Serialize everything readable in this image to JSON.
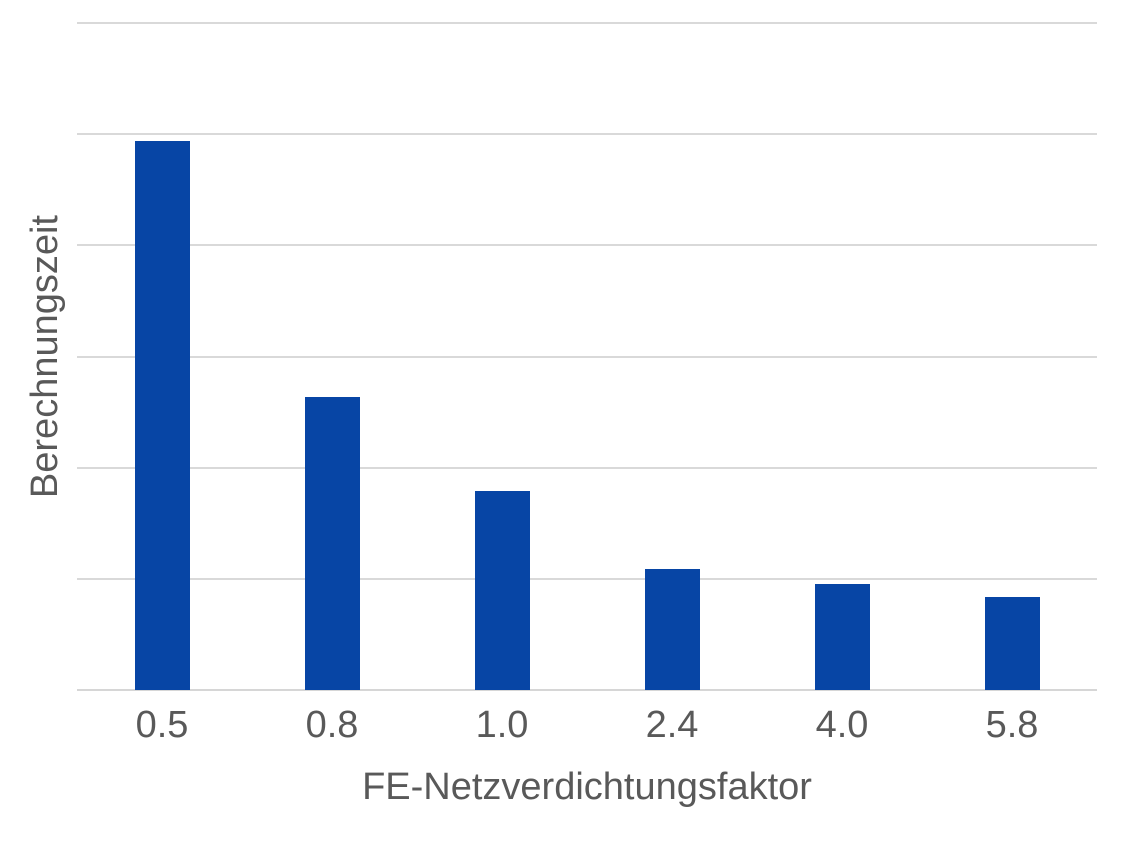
{
  "chart_data": {
    "type": "bar",
    "categories": [
      "0.5",
      "0.8",
      "1.0",
      "2.4",
      "4.0",
      "5.8"
    ],
    "values": [
      4.94,
      2.64,
      1.79,
      1.09,
      0.95,
      0.84
    ],
    "xlabel": "FE-Netzverdichtungsfaktor",
    "ylabel": "Berechnungszeit",
    "ylim": [
      0,
      6
    ],
    "gridline_interval": 1,
    "gridline_count": 7,
    "y_tick_labels_shown": false,
    "legend_position": "none",
    "colors": {
      "bar": "#0745A5",
      "gridline": "#D9D9D9",
      "axis_line": "#D6D6D6",
      "text": "#595959",
      "background": "#FFFFFF"
    }
  }
}
